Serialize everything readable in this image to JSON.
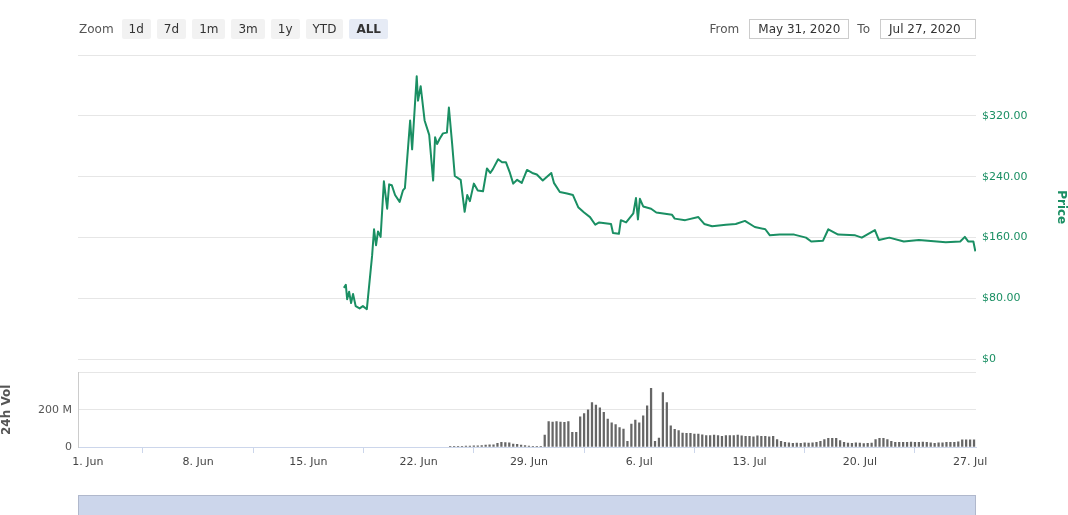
{
  "chart_data": [
    {
      "type": "line",
      "ylabel": "Price",
      "grid": "y",
      "tick_labels": "y",
      "legend": false,
      "marker": "none",
      "line_style": "solid",
      "annotations": [
        "Zoom",
        "1d",
        "7d",
        "1m",
        "3m",
        "1y",
        "YTD",
        "ALL",
        "From",
        "May 31, 2020",
        "To",
        "Jul 27, 2020"
      ],
      "xlim": [
        "2020-05-31T09:00",
        "2020-07-27T09:00"
      ],
      "ylim": [
        0,
        400
      ],
      "yticks": [
        {
          "value": 0,
          "label": "$0"
        },
        {
          "value": 80,
          "label": "$80.00"
        },
        {
          "value": 160,
          "label": "$160.00"
        },
        {
          "value": 240,
          "label": "$240.00"
        },
        {
          "value": 320,
          "label": "$320.00"
        },
        {
          "value": 400,
          "label": null
        }
      ],
      "series": [
        {
          "color": "#1a8f63",
          "x": [
            "2020-06-17T06:00",
            "2020-06-17T09:00",
            "2020-06-17T11:00",
            "2020-06-17T14:00",
            "2020-06-17T17:00",
            "2020-06-17T20:00",
            "2020-06-18T00:00",
            "2020-06-18T06:00",
            "2020-06-18T11:00",
            "2020-06-18T17:00",
            "2020-06-19T01:00",
            "2020-06-19T04:00",
            "2020-06-19T07:00",
            "2020-06-19T10:00",
            "2020-06-19T14:00",
            "2020-06-19T19:00",
            "2020-06-20T00:00",
            "2020-06-20T03:00",
            "2020-06-20T07:00",
            "2020-06-20T12:00",
            "2020-06-20T19:00",
            "2020-06-21T00:00",
            "2020-06-21T03:00",
            "2020-06-21T11:00",
            "2020-06-21T14:00",
            "2020-06-21T21:00",
            "2020-06-21T23:00",
            "2020-06-22T03:00",
            "2020-06-22T09:00",
            "2020-06-22T16:00",
            "2020-06-22T22:00",
            "2020-06-23T01:00",
            "2020-06-23T04:00",
            "2020-06-23T08:00",
            "2020-06-23T13:00",
            "2020-06-23T19:00",
            "2020-06-23T22:00",
            "2020-06-24T03:00",
            "2020-06-24T07:00",
            "2020-06-24T16:00",
            "2020-06-24T22:00",
            "2020-06-25T02:00",
            "2020-06-25T06:00",
            "2020-06-25T12:00",
            "2020-06-25T18:00",
            "2020-06-26T02:00",
            "2020-06-26T08:00",
            "2020-06-26T13:00",
            "2020-06-26T17:00",
            "2020-06-27T01:00",
            "2020-06-27T07:00",
            "2020-06-27T13:00",
            "2020-06-27T19:00",
            "2020-06-28T00:00",
            "2020-06-28T06:00",
            "2020-06-28T13:00",
            "2020-06-28T21:00",
            "2020-06-29T05:00",
            "2020-06-29T12:00",
            "2020-06-29T21:00",
            "2020-06-30T10:00",
            "2020-06-30T14:00",
            "2020-06-30T23:00",
            "2020-07-01T10:00",
            "2020-07-01T19:00",
            "2020-07-02T03:00",
            "2020-07-02T12:00",
            "2020-07-02T21:00",
            "2020-07-03T05:00",
            "2020-07-03T11:00",
            "2020-07-04T05:00",
            "2020-07-04T08:00",
            "2020-07-04T17:00",
            "2020-07-04T20:00",
            "2020-07-05T04:00",
            "2020-07-05T15:00",
            "2020-07-05T19:00",
            "2020-07-05T22:00",
            "2020-07-06T01:00",
            "2020-07-06T06:00",
            "2020-07-06T18:00",
            "2020-07-07T02:00",
            "2020-07-08T02:00",
            "2020-07-08T06:00",
            "2020-07-08T22:00",
            "2020-07-09T18:00",
            "2020-07-10T03:00",
            "2020-07-10T15:00",
            "2020-07-11T12:00",
            "2020-07-12T03:00",
            "2020-07-12T17:00",
            "2020-07-13T08:00",
            "2020-07-14T00:00",
            "2020-07-14T07:00",
            "2020-07-14T22:00",
            "2020-07-15T20:00",
            "2020-07-16T14:00",
            "2020-07-16T22:00",
            "2020-07-17T16:00",
            "2020-07-18T00:00",
            "2020-07-18T15:00",
            "2020-07-19T17:00",
            "2020-07-20T03:00",
            "2020-07-20T23:00",
            "2020-07-21T05:00",
            "2020-07-21T21:00",
            "2020-07-22T19:00",
            "2020-07-23T18:00",
            "2020-07-25T11:00",
            "2020-07-26T09:00",
            "2020-07-26T16:00",
            "2020-07-26T21:00",
            "2020-07-27T05:00",
            "2020-07-27T08:00"
          ],
          "values": [
            94,
            98,
            79,
            89,
            74,
            86,
            70,
            67,
            70,
            66,
            136,
            171,
            150,
            168,
            161,
            234,
            198,
            230,
            229,
            216,
            207,
            222,
            225,
            314,
            276,
            372,
            340,
            359,
            314,
            295,
            235,
            292,
            283,
            290,
            297,
            298,
            331,
            283,
            241,
            236,
            194,
            216,
            208,
            231,
            222,
            221,
            251,
            245,
            250,
            263,
            259,
            259,
            245,
            231,
            236,
            232,
            249,
            245,
            243,
            235,
            245,
            232,
            220,
            218,
            216,
            200,
            193,
            187,
            177,
            180,
            178,
            166,
            165,
            183,
            180,
            192,
            212,
            184,
            211,
            201,
            198,
            193,
            190,
            185,
            183,
            187,
            178,
            175,
            177,
            178,
            182,
            174,
            171,
            163,
            164,
            164,
            160,
            155,
            156,
            171,
            164,
            163,
            160,
            170,
            157,
            160,
            155,
            157,
            154,
            155,
            161,
            155,
            155,
            142
          ]
        }
      ]
    },
    {
      "type": "bar",
      "ylabel": "24h Vol",
      "grid": "y",
      "legend": false,
      "xlim": [
        "2020-05-31T09:00",
        "2020-07-27T09:00"
      ],
      "xticks": [
        {
          "value": "2020-06-01",
          "label": "1. Jun"
        },
        {
          "value": "2020-06-08",
          "label": "8. Jun"
        },
        {
          "value": "2020-06-15",
          "label": "15. Jun"
        },
        {
          "value": "2020-06-22",
          "label": "22. Jun"
        },
        {
          "value": "2020-06-29",
          "label": "29. Jun"
        },
        {
          "value": "2020-07-06",
          "label": "6. Jul"
        },
        {
          "value": "2020-07-13",
          "label": "13. Jul"
        },
        {
          "value": "2020-07-20",
          "label": "20. Jul"
        },
        {
          "value": "2020-07-27",
          "label": "27. Jul"
        }
      ],
      "ylim": [
        0,
        400
      ],
      "yticks": [
        0,
        {
          "value": 200,
          "label": "200 M"
        },
        {
          "value": 400,
          "label": null
        }
      ],
      "series": [
        {
          "color": "#666666",
          "x": [
            "2020-06-24T00:00",
            "2020-06-24T06:00",
            "2020-06-24T12:00",
            "2020-06-24T18:00",
            "2020-06-25T00:00",
            "2020-06-25T06:00",
            "2020-06-25T12:00",
            "2020-06-25T18:00",
            "2020-06-26T00:00",
            "2020-06-26T06:00",
            "2020-06-26T12:00",
            "2020-06-26T18:00",
            "2020-06-27T00:00",
            "2020-06-27T06:00",
            "2020-06-27T12:00",
            "2020-06-27T18:00",
            "2020-06-28T00:00",
            "2020-06-28T06:00",
            "2020-06-28T12:00",
            "2020-06-28T18:00",
            "2020-06-29T00:00",
            "2020-06-29T06:00",
            "2020-06-29T12:00",
            "2020-06-29T18:00",
            "2020-06-30T00:00",
            "2020-06-30T06:00",
            "2020-06-30T12:00",
            "2020-06-30T18:00",
            "2020-07-01T00:00",
            "2020-07-01T06:00",
            "2020-07-01T12:00",
            "2020-07-01T18:00",
            "2020-07-02T00:00",
            "2020-07-02T06:00",
            "2020-07-02T12:00",
            "2020-07-02T18:00",
            "2020-07-03T00:00",
            "2020-07-03T06:00",
            "2020-07-03T12:00",
            "2020-07-03T18:00",
            "2020-07-04T00:00",
            "2020-07-04T06:00",
            "2020-07-04T12:00",
            "2020-07-04T18:00",
            "2020-07-05T00:00",
            "2020-07-05T06:00",
            "2020-07-05T12:00",
            "2020-07-05T18:00",
            "2020-07-06T00:00",
            "2020-07-06T06:00",
            "2020-07-06T12:00",
            "2020-07-06T18:00",
            "2020-07-07T00:00",
            "2020-07-07T06:00",
            "2020-07-07T12:00",
            "2020-07-07T18:00",
            "2020-07-08T00:00",
            "2020-07-08T06:00",
            "2020-07-08T12:00",
            "2020-07-08T18:00",
            "2020-07-09T00:00",
            "2020-07-09T06:00",
            "2020-07-09T12:00",
            "2020-07-09T18:00",
            "2020-07-10T00:00",
            "2020-07-10T06:00",
            "2020-07-10T12:00",
            "2020-07-10T18:00",
            "2020-07-11T00:00",
            "2020-07-11T06:00",
            "2020-07-11T12:00",
            "2020-07-11T18:00",
            "2020-07-12T00:00",
            "2020-07-12T06:00",
            "2020-07-12T12:00",
            "2020-07-12T18:00",
            "2020-07-13T00:00",
            "2020-07-13T06:00",
            "2020-07-13T12:00",
            "2020-07-13T18:00",
            "2020-07-14T00:00",
            "2020-07-14T06:00",
            "2020-07-14T12:00",
            "2020-07-14T18:00",
            "2020-07-15T00:00",
            "2020-07-15T06:00",
            "2020-07-15T12:00",
            "2020-07-15T18:00",
            "2020-07-16T00:00",
            "2020-07-16T06:00",
            "2020-07-16T12:00",
            "2020-07-16T18:00",
            "2020-07-17T00:00",
            "2020-07-17T06:00",
            "2020-07-17T12:00",
            "2020-07-17T18:00",
            "2020-07-18T00:00",
            "2020-07-18T06:00",
            "2020-07-18T12:00",
            "2020-07-18T18:00",
            "2020-07-19T00:00",
            "2020-07-19T06:00",
            "2020-07-19T12:00",
            "2020-07-19T18:00",
            "2020-07-20T00:00",
            "2020-07-20T06:00",
            "2020-07-20T12:00",
            "2020-07-20T18:00",
            "2020-07-21T00:00",
            "2020-07-21T06:00",
            "2020-07-21T12:00",
            "2020-07-21T18:00",
            "2020-07-22T00:00",
            "2020-07-22T06:00",
            "2020-07-22T12:00",
            "2020-07-22T18:00",
            "2020-07-23T00:00",
            "2020-07-23T06:00",
            "2020-07-23T12:00",
            "2020-07-23T18:00",
            "2020-07-24T00:00",
            "2020-07-24T06:00",
            "2020-07-24T12:00",
            "2020-07-24T18:00",
            "2020-07-25T00:00",
            "2020-07-25T06:00",
            "2020-07-25T12:00",
            "2020-07-25T18:00",
            "2020-07-26T00:00",
            "2020-07-26T06:00",
            "2020-07-26T12:00",
            "2020-07-26T18:00",
            "2020-07-27T00:00",
            "2020-07-27T06:00"
          ],
          "values": [
            3,
            3,
            4,
            4,
            5,
            5,
            6,
            6,
            8,
            10,
            12,
            12,
            20,
            25,
            24,
            22,
            16,
            14,
            10,
            8,
            5,
            4,
            3,
            3,
            64,
            136,
            134,
            136,
            134,
            132,
            136,
            79,
            79,
            162,
            180,
            200,
            239,
            225,
            210,
            186,
            150,
            130,
            120,
            105,
            96,
            30,
            123,
            145,
            130,
            168,
            221,
            316,
            30,
            48,
            293,
            239,
            114,
            95,
            88,
            75,
            73,
            73,
            70,
            70,
            66,
            62,
            61,
            64,
            61,
            58,
            62,
            61,
            61,
            64,
            60,
            58,
            57,
            55,
            60,
            57,
            57,
            55,
            57,
            40,
            30,
            25,
            22,
            20,
            21,
            20,
            22,
            21,
            22,
            25,
            30,
            40,
            46,
            46,
            46,
            35,
            25,
            21,
            20,
            22,
            21,
            18,
            20,
            21,
            40,
            46,
            46,
            40,
            30,
            25,
            25,
            25,
            25,
            27,
            25,
            25,
            27,
            25,
            22,
            20,
            22,
            22,
            25,
            25,
            25,
            28,
            39,
            39,
            39,
            39
          ]
        }
      ]
    }
  ]
}
